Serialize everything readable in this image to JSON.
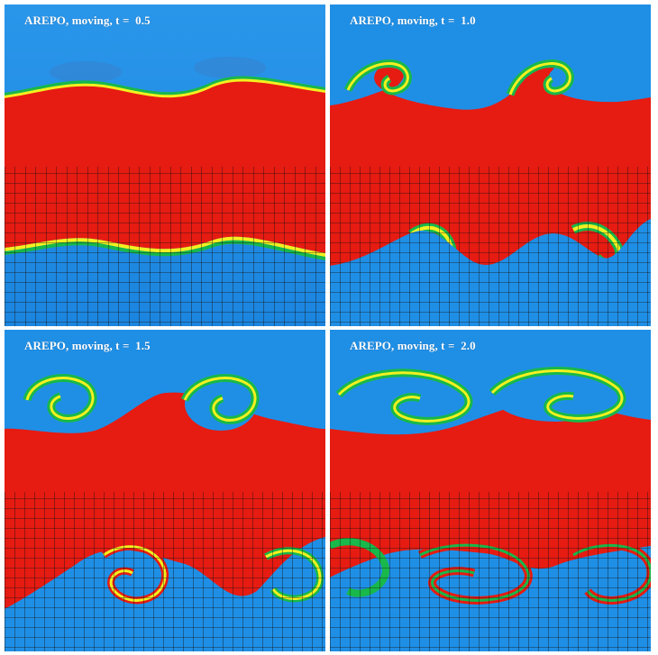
{
  "figure": {
    "colors": {
      "blue": "#1f8fe6",
      "red": "#e61b12",
      "green": "#18b84a",
      "yellow": "#f2f020",
      "dark_blue": "#0f4f86",
      "cell_edge": "#111111"
    },
    "panels": [
      {
        "label": "AREPO, moving, t =  0.5",
        "time": 0.5
      },
      {
        "label": "AREPO, moving, t =  1.0",
        "time": 1.0
      },
      {
        "label": "AREPO, moving, t =  1.5",
        "time": 1.5
      },
      {
        "label": "AREPO, moving, t =  2.0",
        "time": 2.0
      }
    ]
  }
}
